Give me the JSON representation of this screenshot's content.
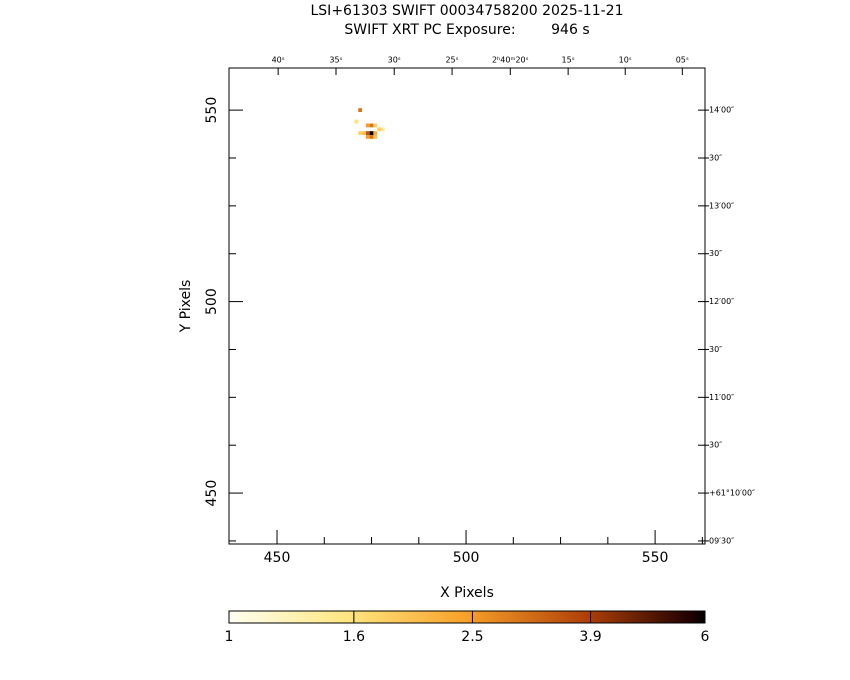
{
  "chart_data": {
    "type": "image",
    "title": "LSI+61303 SWIFT 00034758200 2025-11-21",
    "subtitle": "SWIFT XRT PC Exposure:        946 s",
    "x_label": "X Pixels",
    "y_label": "Y Pixels",
    "xlim": [
      437.3,
      563.2
    ],
    "ylim": [
      436.7,
      561.0
    ],
    "xticks": [
      450,
      500,
      550
    ],
    "xminorticks": [
      462.5,
      475,
      487.5,
      512.5,
      525,
      537.5,
      562.5
    ],
    "yticks": [
      450,
      500,
      550
    ],
    "yminorticks": [
      437.5,
      462.5,
      475,
      487.5,
      512.5,
      525,
      537.5
    ],
    "top_ticks": [
      {
        "value": 450.3,
        "label": "40ˢ"
      },
      {
        "value": 465.6,
        "label": "35ˢ"
      },
      {
        "value": 481.0,
        "label": "30ˢ"
      },
      {
        "value": 496.3,
        "label": "25ˢ"
      },
      {
        "value": 511.7,
        "label": "2ʰ40ᵐ20ˢ"
      },
      {
        "value": 527.0,
        "label": "15ˢ"
      },
      {
        "value": 542.1,
        "label": "10ˢ"
      },
      {
        "value": 557.2,
        "label": "05ˢ"
      }
    ],
    "right_ticks": [
      {
        "value": 550,
        "label": "14′00″"
      },
      {
        "value": 537.5,
        "label": "30″"
      },
      {
        "value": 525,
        "label": "13′00″"
      },
      {
        "value": 512.5,
        "label": "30″"
      },
      {
        "value": 500,
        "label": "12′00″"
      },
      {
        "value": 487.5,
        "label": "30″"
      },
      {
        "value": 475,
        "label": "11′00″"
      },
      {
        "value": 462.5,
        "label": "30″"
      },
      {
        "value": 450,
        "label": "+61°10′00″"
      },
      {
        "value": 437.5,
        "label": "09′30″"
      }
    ],
    "pixels": {
      "x": [
        472,
        471,
        474,
        475,
        476,
        477,
        478,
        472,
        473,
        474,
        475,
        476,
        474,
        475,
        476
      ],
      "y": [
        550,
        547,
        546,
        546,
        546,
        545,
        545,
        544,
        544,
        544,
        544,
        544,
        543,
        543,
        543
      ],
      "counts": [
        3,
        1.6,
        2.5,
        3,
        1.8,
        1.8,
        1.5,
        1.8,
        2,
        3.5,
        6,
        2.2,
        2.5,
        3,
        2
      ]
    },
    "colorbar": {
      "lim": [
        1,
        6
      ],
      "ticks": [
        1,
        1.6,
        2.5,
        3.9,
        6
      ],
      "log": true
    }
  }
}
